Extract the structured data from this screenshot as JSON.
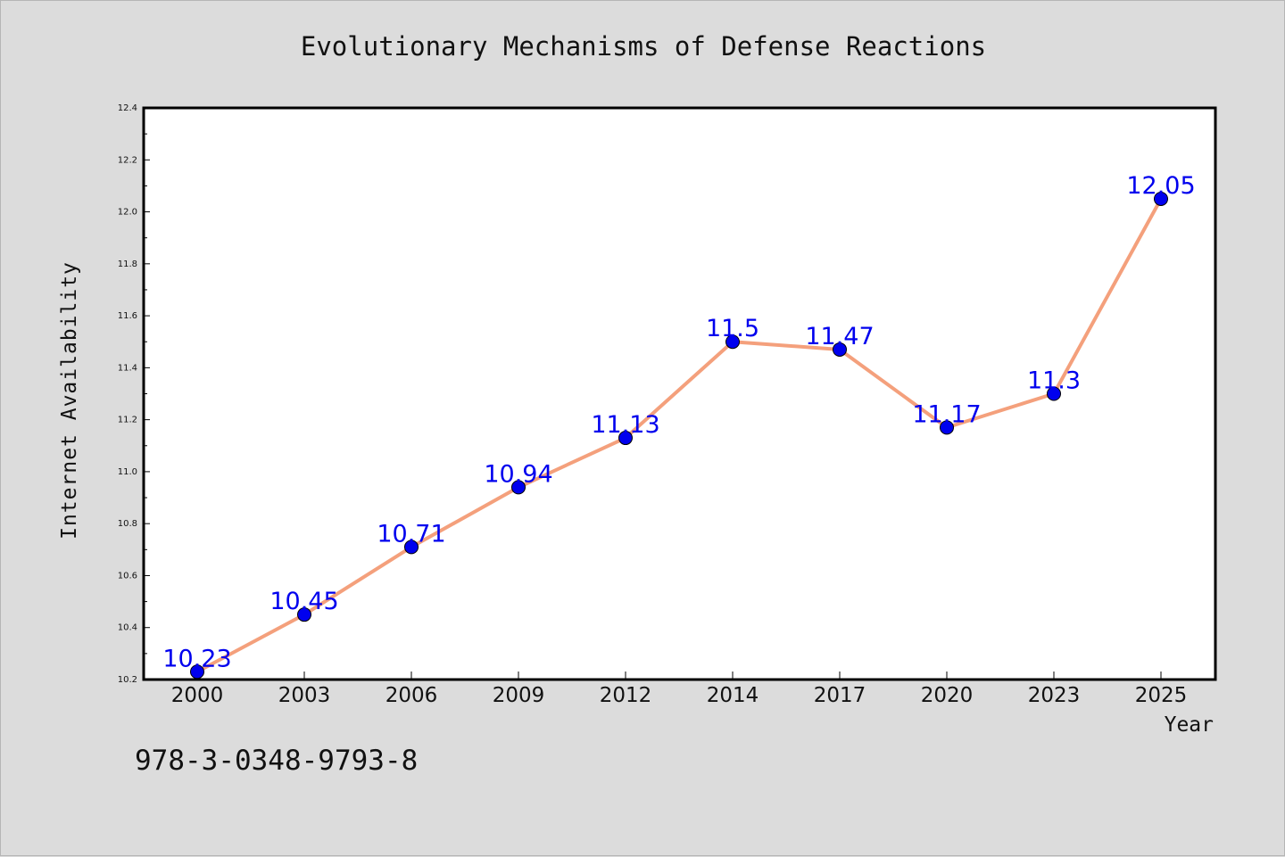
{
  "chart_data": {
    "type": "line",
    "title": "Evolutionary Mechanisms of Defense Reactions",
    "xlabel": "Year",
    "ylabel": "Internet Availability",
    "categories": [
      "2000",
      "2003",
      "2006",
      "2009",
      "2012",
      "2014",
      "2017",
      "2020",
      "2023",
      "2025"
    ],
    "series": [
      {
        "values": [
          10.23,
          10.45,
          10.71,
          10.94,
          11.13,
          11.5,
          11.47,
          11.17,
          11.3,
          12.05
        ]
      }
    ],
    "data_labels": [
      "10.23",
      "10.45",
      "10.71",
      "10.94",
      "11.13",
      "11.5",
      "11.47",
      "11.17",
      "11.3",
      "12.05"
    ],
    "ylim": [
      10.2,
      12.4
    ],
    "yticks": [
      "10.2",
      "10.4",
      "10.6",
      "10.8",
      "11.0",
      "11.2",
      "11.4",
      "11.6",
      "11.8",
      "12.0",
      "12.2",
      "12.4"
    ],
    "grid": false,
    "line_color": "#f4a07c",
    "marker_color": "#0000ee",
    "label_color": "#0000ee"
  },
  "footer": {
    "isbn": "978-3-0348-9793-8"
  }
}
